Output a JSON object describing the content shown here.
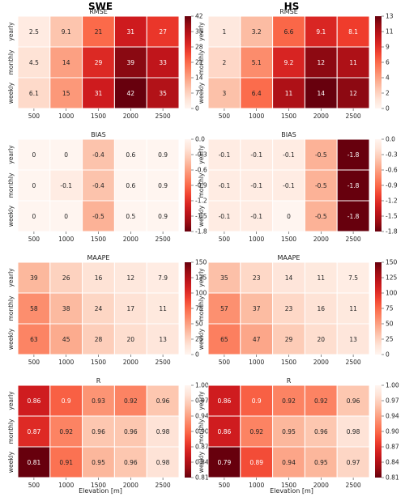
{
  "column_titles": [
    "SWE",
    "HS"
  ],
  "xlabel": "Elevation [m]",
  "chart_data": [
    {
      "type": "heatmap",
      "title": "RMSE",
      "column": "SWE",
      "unit": "[mm]",
      "x": [
        "500",
        "1000",
        "1500",
        "2000",
        "2500"
      ],
      "y": [
        "yearly",
        "monthly",
        "weekly"
      ],
      "values": [
        [
          2.5,
          9.1,
          21,
          31,
          27
        ],
        [
          4.5,
          14,
          29,
          39,
          33
        ],
        [
          6.1,
          15,
          31,
          42,
          35
        ]
      ],
      "labels": [
        [
          "2.5",
          "9.1",
          "21",
          "31",
          "27"
        ],
        [
          "4.5",
          "14",
          "29",
          "39",
          "33"
        ],
        [
          "6.1",
          "15",
          "31",
          "42",
          "35"
        ]
      ],
      "vmin": 0,
      "vmax": 42,
      "cmap": "reds",
      "colorbar_ticks": [
        "0",
        "7",
        "14",
        "21",
        "28",
        "35",
        "42"
      ]
    },
    {
      "type": "heatmap",
      "title": "RMSE",
      "column": "HS",
      "unit": "[cm]",
      "x": [
        "500",
        "1000",
        "1500",
        "2000",
        "2500"
      ],
      "y": [
        "yearly",
        "monthly",
        "weekly"
      ],
      "values": [
        [
          1,
          3.2,
          6.6,
          9.1,
          8.1
        ],
        [
          2,
          5.1,
          9.2,
          12,
          11
        ],
        [
          3,
          6.4,
          11,
          14,
          12
        ]
      ],
      "labels": [
        [
          "1",
          "3.2",
          "6.6",
          "9.1",
          "8.1"
        ],
        [
          "2",
          "5.1",
          "9.2",
          "12",
          "11"
        ],
        [
          "3",
          "6.4",
          "11",
          "14",
          "12"
        ]
      ],
      "vmin": 0,
      "vmax": 13,
      "cmap": "reds",
      "colorbar_ticks": [
        "0",
        "2",
        "4",
        "6",
        "9",
        "11",
        "13"
      ]
    },
    {
      "type": "heatmap",
      "title": "BIAS",
      "column": "SWE",
      "unit": "[mm]",
      "x": [
        "500",
        "1000",
        "1500",
        "2000",
        "2500"
      ],
      "y": [
        "yearly",
        "monthly",
        "weekly"
      ],
      "values": [
        [
          0,
          0,
          -0.4,
          0.6,
          0.9
        ],
        [
          0,
          -0.1,
          -0.4,
          0.6,
          0.9
        ],
        [
          0,
          0,
          -0.5,
          0.5,
          0.9
        ]
      ],
      "labels": [
        [
          "0",
          "0",
          "-0.4",
          "0.6",
          "0.9"
        ],
        [
          "0",
          "-0.1",
          "-0.4",
          "0.6",
          "0.9"
        ],
        [
          "0",
          "0",
          "-0.5",
          "0.5",
          "0.9"
        ]
      ],
      "vmin": -1.8,
      "vmax": 0,
      "cmap": "reds_r",
      "colorbar_ticks": [
        "0.0",
        "-0.3",
        "-0.6",
        "-0.9",
        "-1.2",
        "-1.5",
        "-1.8"
      ]
    },
    {
      "type": "heatmap",
      "title": "BIAS",
      "column": "HS",
      "unit": "[cm]",
      "x": [
        "500",
        "1000",
        "1500",
        "2000",
        "2500"
      ],
      "y": [
        "yearly",
        "monthly",
        "weekly"
      ],
      "values": [
        [
          -0.1,
          -0.1,
          -0.1,
          -0.5,
          -1.8
        ],
        [
          -0.1,
          -0.1,
          -0.1,
          -0.5,
          -1.8
        ],
        [
          -0.1,
          -0.1,
          0,
          -0.5,
          -1.8
        ]
      ],
      "labels": [
        [
          "-0.1",
          "-0.1",
          "-0.1",
          "-0.5",
          "-1.8"
        ],
        [
          "-0.1",
          "-0.1",
          "-0.1",
          "-0.5",
          "-1.8"
        ],
        [
          "-0.1",
          "-0.1",
          "0",
          "-0.5",
          "-1.8"
        ]
      ],
      "vmin": -1.8,
      "vmax": 0,
      "cmap": "reds_r",
      "colorbar_ticks": [
        "0.0",
        "-0.3",
        "-0.6",
        "-0.9",
        "-1.2",
        "-1.5",
        "-1.8"
      ]
    },
    {
      "type": "heatmap",
      "title": "MAAPE",
      "column": "SWE",
      "unit": "[%]",
      "x": [
        "500",
        "1000",
        "1500",
        "2000",
        "2500"
      ],
      "y": [
        "yearly",
        "monthly",
        "weekly"
      ],
      "values": [
        [
          39,
          26,
          16,
          12,
          7.9
        ],
        [
          58,
          38,
          24,
          17,
          11
        ],
        [
          63,
          45,
          28,
          20,
          13
        ]
      ],
      "labels": [
        [
          "39",
          "26",
          "16",
          "12",
          "7.9"
        ],
        [
          "58",
          "38",
          "24",
          "17",
          "11"
        ],
        [
          "63",
          "45",
          "28",
          "20",
          "13"
        ]
      ],
      "vmin": 0,
      "vmax": 150,
      "cmap": "reds",
      "colorbar_ticks": [
        "0",
        "25",
        "50",
        "75",
        "100",
        "125",
        "150"
      ]
    },
    {
      "type": "heatmap",
      "title": "MAAPE",
      "column": "HS",
      "unit": "[%]",
      "x": [
        "500",
        "1000",
        "1500",
        "2000",
        "2500"
      ],
      "y": [
        "yearly",
        "monthly",
        "weekly"
      ],
      "values": [
        [
          35,
          23,
          14,
          11,
          7.5
        ],
        [
          57,
          37,
          23,
          16,
          11
        ],
        [
          65,
          47,
          29,
          20,
          13
        ]
      ],
      "labels": [
        [
          "35",
          "23",
          "14",
          "11",
          "7.5"
        ],
        [
          "57",
          "37",
          "23",
          "16",
          "11"
        ],
        [
          "65",
          "47",
          "29",
          "20",
          "13"
        ]
      ],
      "vmin": 0,
      "vmax": 150,
      "cmap": "reds",
      "colorbar_ticks": [
        "0",
        "25",
        "50",
        "75",
        "100",
        "125",
        "150"
      ]
    },
    {
      "type": "heatmap",
      "title": "R",
      "column": "SWE",
      "unit": "[ ]",
      "x": [
        "500",
        "1000",
        "1500",
        "2000",
        "2500"
      ],
      "y": [
        "yearly",
        "monthly",
        "weekly"
      ],
      "values": [
        [
          0.86,
          0.9,
          0.93,
          0.92,
          0.96
        ],
        [
          0.87,
          0.92,
          0.96,
          0.96,
          0.98
        ],
        [
          0.81,
          0.91,
          0.95,
          0.96,
          0.98
        ]
      ],
      "labels": [
        [
          "0.86",
          "0.9",
          "0.93",
          "0.92",
          "0.96"
        ],
        [
          "0.87",
          "0.92",
          "0.96",
          "0.96",
          "0.98"
        ],
        [
          "0.81",
          "0.91",
          "0.95",
          "0.96",
          "0.98"
        ]
      ],
      "vmin": 0.81,
      "vmax": 1.0,
      "cmap": "reds_r",
      "colorbar_ticks": [
        "1.00",
        "0.97",
        "0.94",
        "0.90",
        "0.87",
        "0.84",
        "0.81"
      ]
    },
    {
      "type": "heatmap",
      "title": "R",
      "column": "HS",
      "unit": "[ ]",
      "x": [
        "500",
        "1000",
        "1500",
        "2000",
        "2500"
      ],
      "y": [
        "yearly",
        "monthly",
        "weekly"
      ],
      "values": [
        [
          0.86,
          0.9,
          0.92,
          0.92,
          0.96
        ],
        [
          0.86,
          0.92,
          0.95,
          0.96,
          0.98
        ],
        [
          0.79,
          0.89,
          0.94,
          0.95,
          0.97
        ]
      ],
      "labels": [
        [
          "0.86",
          "0.9",
          "0.92",
          "0.92",
          "0.96"
        ],
        [
          "0.86",
          "0.92",
          "0.95",
          "0.96",
          "0.98"
        ],
        [
          "0.79",
          "0.89",
          "0.94",
          "0.95",
          "0.97"
        ]
      ],
      "vmin": 0.81,
      "vmax": 1.0,
      "cmap": "reds_r",
      "colorbar_ticks": [
        "1.00",
        "0.97",
        "0.94",
        "0.90",
        "0.87",
        "0.84",
        "0.81"
      ]
    }
  ]
}
